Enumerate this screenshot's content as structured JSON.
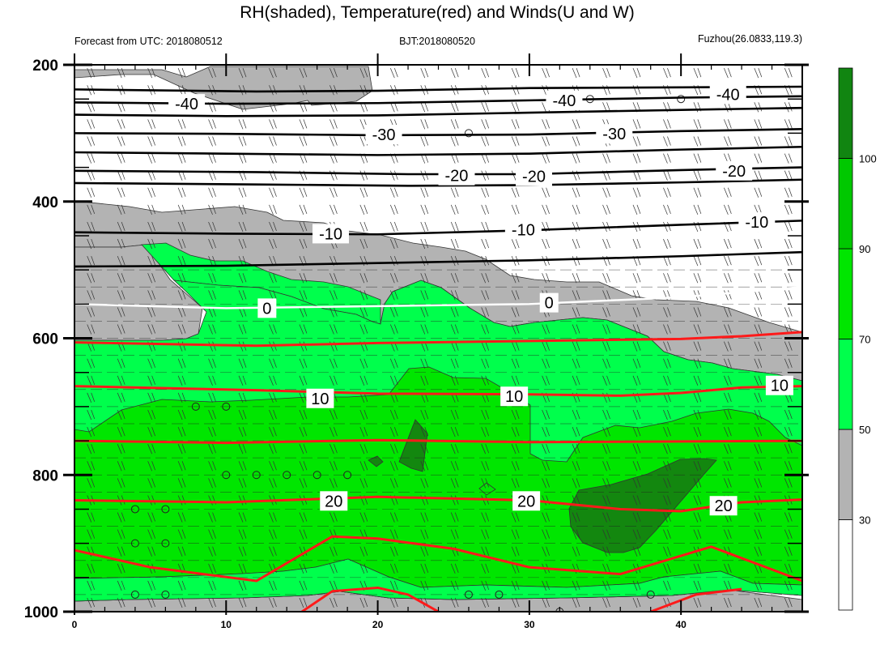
{
  "chart_data": {
    "type": "contour",
    "title": "RH(shaded), Temperature(red) and Winds(U and W)",
    "subtitle_left": "Forecast from UTC: 2018080512",
    "subtitle_center": "BJT:2018080520",
    "subtitle_right": "Fuzhou(26.0833,119.3)",
    "x": {
      "range": [
        0,
        48
      ],
      "ticks": [
        "0",
        "10",
        "20",
        "30",
        "40"
      ],
      "tick_values": [
        0,
        10,
        20,
        30,
        40
      ],
      "minor_step": 2
    },
    "y": {
      "range": [
        1000,
        200
      ],
      "ticks": [
        "200",
        "400",
        "600",
        "800",
        "1000"
      ],
      "tick_values": [
        200,
        400,
        600,
        800,
        1000
      ],
      "minor_step": 50
    },
    "colorbar": {
      "levels": [
        "30",
        "50",
        "70",
        "90",
        "100"
      ],
      "level_values": [
        30,
        50,
        70,
        90,
        100
      ],
      "colors": [
        "#ffffff",
        "#b3b3b3",
        "#00ff4c",
        "#00e600",
        "#00c800",
        "#118511"
      ]
    },
    "temperature_contour_labels": [
      {
        "text": "-40",
        "x": 7.4,
        "y": 257
      },
      {
        "text": "-40",
        "x": 32.3,
        "y": 252
      },
      {
        "text": "-40",
        "x": 43.1,
        "y": 243
      },
      {
        "text": "-30",
        "x": 20.4,
        "y": 302
      },
      {
        "text": "-30",
        "x": 35.6,
        "y": 301
      },
      {
        "text": "-20",
        "x": 25.2,
        "y": 362
      },
      {
        "text": "-20",
        "x": 30.3,
        "y": 363
      },
      {
        "text": "-20",
        "x": 43.5,
        "y": 355
      },
      {
        "text": "-10",
        "x": 16.9,
        "y": 447
      },
      {
        "text": "-10",
        "x": 29.6,
        "y": 441
      },
      {
        "text": "-10",
        "x": 45.0,
        "y": 430
      },
      {
        "text": "0",
        "x": 12.7,
        "y": 556
      },
      {
        "text": "0",
        "x": 31.3,
        "y": 548
      },
      {
        "text": "0",
        "x": 48.3,
        "y": 531
      },
      {
        "text": "10",
        "x": 16.2,
        "y": 688
      },
      {
        "text": "10",
        "x": 29.0,
        "y": 685
      },
      {
        "text": "10",
        "x": 46.5,
        "y": 669
      },
      {
        "text": "20",
        "x": 17.1,
        "y": 838
      },
      {
        "text": "20",
        "x": 29.8,
        "y": 838
      },
      {
        "text": "20",
        "x": 42.8,
        "y": 845
      }
    ],
    "temperature_contours": [
      {
        "level": -40,
        "pts": [
          [
            0,
            236
          ],
          [
            12,
            239
          ],
          [
            20,
            238
          ],
          [
            30,
            234
          ],
          [
            40,
            233
          ],
          [
            48,
            232
          ]
        ]
      },
      {
        "level": -40,
        "pts": [
          [
            0,
            255
          ],
          [
            10,
            257
          ],
          [
            20,
            256
          ],
          [
            30,
            252
          ],
          [
            40,
            248
          ],
          [
            48,
            246
          ]
        ]
      },
      {
        "level": -40,
        "pts": [
          [
            0,
            273
          ],
          [
            10,
            275
          ],
          [
            20,
            274
          ],
          [
            30,
            270
          ],
          [
            40,
            266
          ],
          [
            48,
            263
          ]
        ]
      },
      {
        "level": -30,
        "pts": [
          [
            0,
            300
          ],
          [
            10,
            301
          ],
          [
            20,
            303
          ],
          [
            30,
            302
          ],
          [
            40,
            297
          ],
          [
            48,
            294
          ]
        ]
      },
      {
        "level": -30,
        "pts": [
          [
            0,
            328
          ],
          [
            10,
            330
          ],
          [
            20,
            332
          ],
          [
            30,
            330
          ],
          [
            40,
            324
          ],
          [
            48,
            320
          ]
        ]
      },
      {
        "level": -20,
        "pts": [
          [
            0,
            355
          ],
          [
            12,
            357
          ],
          [
            22,
            360
          ],
          [
            30,
            360
          ],
          [
            40,
            354
          ],
          [
            48,
            350
          ]
        ]
      },
      {
        "level": -20,
        "pts": [
          [
            0,
            373
          ],
          [
            12,
            375
          ],
          [
            22,
            377
          ],
          [
            30,
            376
          ],
          [
            40,
            372
          ],
          [
            48,
            368
          ]
        ]
      },
      {
        "level": -10,
        "pts": [
          [
            0,
            445
          ],
          [
            10,
            447
          ],
          [
            20,
            448
          ],
          [
            30,
            442
          ],
          [
            40,
            434
          ],
          [
            48,
            428
          ]
        ]
      },
      {
        "level": -10,
        "pts": [
          [
            0,
            495
          ],
          [
            10,
            494
          ],
          [
            20,
            490
          ],
          [
            30,
            486
          ],
          [
            40,
            480
          ],
          [
            48,
            474
          ]
        ]
      },
      {
        "level": 0,
        "pts": [
          [
            0,
            550
          ],
          [
            10,
            556
          ],
          [
            20,
            553
          ],
          [
            30,
            550
          ],
          [
            40,
            540
          ],
          [
            48,
            525
          ]
        ]
      },
      {
        "level": 10,
        "pts": [
          [
            0,
            606
          ],
          [
            12,
            611
          ],
          [
            20,
            607
          ],
          [
            30,
            604
          ],
          [
            40,
            601
          ],
          [
            44,
            597
          ],
          [
            48,
            591
          ]
        ]
      },
      {
        "level": 10,
        "pts": [
          [
            0,
            670
          ],
          [
            12,
            676
          ],
          [
            20,
            681
          ],
          [
            30,
            682
          ],
          [
            36,
            684
          ],
          [
            40,
            680
          ],
          [
            44,
            672
          ],
          [
            48,
            670
          ]
        ]
      },
      {
        "level": 10,
        "pts": [
          [
            0,
            750
          ],
          [
            10,
            753
          ],
          [
            20,
            749
          ],
          [
            30,
            752
          ],
          [
            40,
            751
          ],
          [
            48,
            750
          ]
        ]
      },
      {
        "level": 20,
        "pts": [
          [
            0,
            837
          ],
          [
            10,
            840
          ],
          [
            20,
            832
          ],
          [
            30,
            837
          ],
          [
            36,
            850
          ],
          [
            40,
            853
          ],
          [
            44,
            840
          ],
          [
            48,
            836
          ]
        ]
      },
      {
        "level": 20,
        "pts": [
          [
            0,
            910
          ],
          [
            5,
            935
          ],
          [
            12,
            955
          ],
          [
            17,
            890
          ],
          [
            20,
            893
          ],
          [
            25,
            908
          ],
          [
            30,
            935
          ],
          [
            36,
            945
          ],
          [
            42,
            905
          ],
          [
            48,
            955
          ]
        ]
      },
      {
        "level": 20,
        "pts": [
          [
            15,
            1000
          ],
          [
            17,
            970
          ],
          [
            20,
            965
          ],
          [
            22,
            975
          ],
          [
            24,
            1000
          ]
        ]
      },
      {
        "level": 20,
        "pts": [
          [
            38,
            1000
          ],
          [
            41,
            975
          ],
          [
            44,
            967
          ]
        ]
      }
    ],
    "rh_regions": [
      {
        "rh": 40,
        "pts": [
          [
            0,
            205
          ],
          [
            10,
            210
          ],
          [
            20,
            210
          ],
          [
            24,
            205
          ],
          [
            30,
            205
          ],
          [
            40,
            205
          ],
          [
            48,
            205
          ],
          [
            48,
            1000
          ],
          [
            0,
            1000
          ]
        ]
      },
      {
        "rh": 20,
        "pts": [
          [
            10,
            210
          ],
          [
            14,
            205
          ],
          [
            20,
            205
          ],
          [
            20,
            245
          ],
          [
            14,
            255
          ],
          [
            10,
            245
          ]
        ]
      },
      {
        "rh": 20,
        "pts": [
          [
            0,
            265
          ],
          [
            20,
            268
          ],
          [
            30,
            265
          ],
          [
            48,
            262
          ],
          [
            48,
            540
          ],
          [
            40,
            540
          ],
          [
            32,
            520
          ],
          [
            20,
            510
          ],
          [
            10,
            490
          ],
          [
            0,
            485
          ]
        ]
      },
      {
        "rh": 20,
        "pts": [
          [
            25,
            205
          ],
          [
            48,
            205
          ],
          [
            48,
            262
          ],
          [
            30,
            265
          ],
          [
            25,
            262
          ]
        ]
      },
      {
        "rh": 60,
        "pts": [
          [
            0,
            800
          ],
          [
            8,
            770
          ],
          [
            20,
            750
          ],
          [
            30,
            700
          ],
          [
            40,
            690
          ],
          [
            48,
            700
          ],
          [
            48,
            1000
          ],
          [
            0,
            1000
          ]
        ]
      },
      {
        "rh": 80,
        "pts": [
          [
            0,
            815
          ],
          [
            10,
            805
          ],
          [
            20,
            785
          ],
          [
            28,
            770
          ],
          [
            32,
            760
          ],
          [
            36,
            800
          ],
          [
            44,
            810
          ],
          [
            48,
            820
          ],
          [
            48,
            960
          ],
          [
            0,
            960
          ]
        ]
      }
    ],
    "wind_barbs": "present",
    "circles": "present"
  }
}
